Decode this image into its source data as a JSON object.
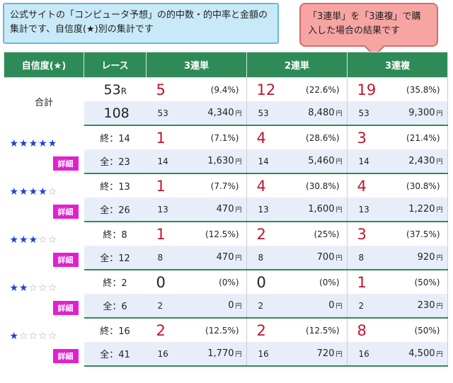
{
  "notes": {
    "left": "公式サイトの「コンピュータ予想」の的中数・的中率と金額の集計です、自信度(★)別の集計です",
    "right": "「3連単」を「3連複」で購入した場合の結果です"
  },
  "headers": {
    "confidence": "自信度(★)",
    "race": "レース",
    "trifecta": "3連単",
    "exacta": "2連単",
    "trio": "3連複"
  },
  "total": {
    "label": "合計",
    "races": "53",
    "races_unit": "R",
    "hit_races": "108",
    "trifecta": {
      "hits": "5",
      "pct": "(9.4%)",
      "n": "53",
      "amount": "4,340"
    },
    "exacta": {
      "hits": "12",
      "pct": "(22.6%)",
      "n": "53",
      "amount": "8,480"
    },
    "trio": {
      "hits": "19",
      "pct": "(35.8%)",
      "n": "53",
      "amount": "9,300"
    }
  },
  "yen": "円",
  "detail_label": "詳細",
  "groups": [
    {
      "stars_on": "★★★★★",
      "stars_off": "",
      "end": "終：14",
      "all": "全：23",
      "trifecta": {
        "hits": "1",
        "pct": "(7.1%)",
        "n": "14",
        "amount": "1,630"
      },
      "exacta": {
        "hits": "4",
        "pct": "(28.6%)",
        "n": "14",
        "amount": "5,460"
      },
      "trio": {
        "hits": "3",
        "pct": "(21.4%)",
        "n": "14",
        "amount": "2,430"
      }
    },
    {
      "stars_on": "★★★★",
      "stars_off": "☆",
      "end": "終：13",
      "all": "全：26",
      "trifecta": {
        "hits": "1",
        "pct": "(7.7%)",
        "n": "13",
        "amount": "470"
      },
      "exacta": {
        "hits": "4",
        "pct": "(30.8%)",
        "n": "13",
        "amount": "1,600"
      },
      "trio": {
        "hits": "4",
        "pct": "(30.8%)",
        "n": "13",
        "amount": "1,220"
      }
    },
    {
      "stars_on": "★★★",
      "stars_off": "☆☆",
      "end": "終：8",
      "all": "全：12",
      "trifecta": {
        "hits": "1",
        "pct": "(12.5%)",
        "n": "8",
        "amount": "470"
      },
      "exacta": {
        "hits": "2",
        "pct": "(25%)",
        "n": "8",
        "amount": "700"
      },
      "trio": {
        "hits": "3",
        "pct": "(37.5%)",
        "n": "8",
        "amount": "920"
      }
    },
    {
      "stars_on": "★★",
      "stars_off": "☆☆☆",
      "end": "終：2",
      "all": "全：6",
      "trifecta": {
        "hits": "0",
        "pct": "(0%)",
        "n": "2",
        "amount": "0"
      },
      "exacta": {
        "hits": "0",
        "pct": "(0%)",
        "n": "2",
        "amount": "0"
      },
      "trio": {
        "hits": "1",
        "pct": "(50%)",
        "n": "2",
        "amount": "230"
      }
    },
    {
      "stars_on": "★",
      "stars_off": "☆☆☆☆",
      "end": "終：16",
      "all": "全：41",
      "trifecta": {
        "hits": "2",
        "pct": "(12.5%)",
        "n": "16",
        "amount": "1,770"
      },
      "exacta": {
        "hits": "2",
        "pct": "(12.5%)",
        "n": "16",
        "amount": "720"
      },
      "trio": {
        "hits": "8",
        "pct": "(50%)",
        "n": "16",
        "amount": "4,500"
      }
    }
  ]
}
